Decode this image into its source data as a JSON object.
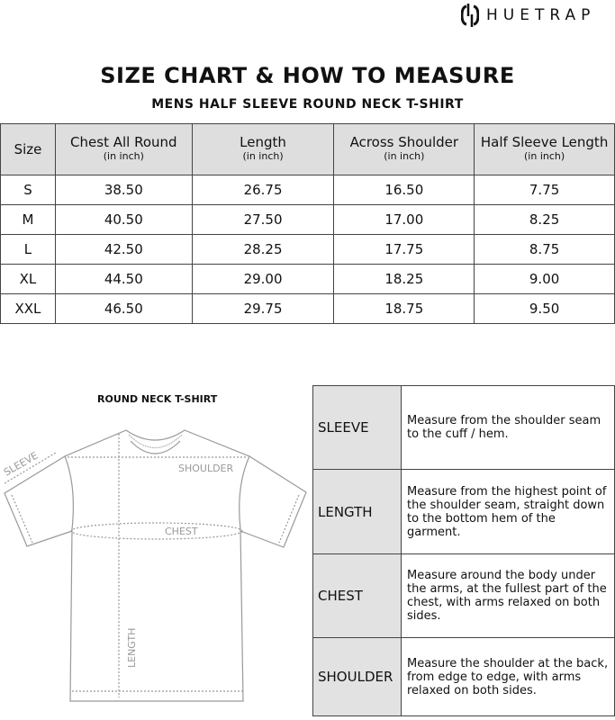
{
  "brand": "HUETRAP",
  "title": "SIZE CHART & HOW TO MEASURE",
  "subtitle": "MENS HALF SLEEVE ROUND NECK T-SHIRT",
  "size_table": {
    "headers": [
      {
        "label": "Size",
        "unit": ""
      },
      {
        "label": "Chest All Round",
        "unit": "(in inch)"
      },
      {
        "label": "Length",
        "unit": "(in inch)"
      },
      {
        "label": "Across Shoulder",
        "unit": "(in inch)"
      },
      {
        "label": "Half Sleeve Length",
        "unit": "(in inch)"
      }
    ],
    "rows": [
      [
        "S",
        "38.50",
        "26.75",
        "16.50",
        "7.75"
      ],
      [
        "M",
        "40.50",
        "27.50",
        "17.00",
        "8.25"
      ],
      [
        "L",
        "42.50",
        "28.25",
        "17.75",
        "8.75"
      ],
      [
        "XL",
        "44.50",
        "29.00",
        "18.25",
        "9.00"
      ],
      [
        "XXL",
        "46.50",
        "29.75",
        "18.75",
        "9.50"
      ]
    ]
  },
  "diagram": {
    "title": "ROUND NECK T-SHIRT",
    "labels": {
      "sleeve": "SLEEVE",
      "shoulder": "SHOULDER",
      "chest": "CHEST",
      "length": "LENGTH"
    }
  },
  "guide": [
    {
      "label": "SLEEVE",
      "text": "Measure from the shoulder seam to the cuff / hem."
    },
    {
      "label": "LENGTH",
      "text": "Measure from the highest point of the shoulder seam, straight down to the bottom hem of the garment."
    },
    {
      "label": "CHEST",
      "text": "Measure around the body under the arms, at the fullest part of the chest, with arms relaxed on both sides."
    },
    {
      "label": "SHOULDER",
      "text": "Measure the shoulder at the back, from edge to edge, with arms relaxed on both sides."
    }
  ]
}
